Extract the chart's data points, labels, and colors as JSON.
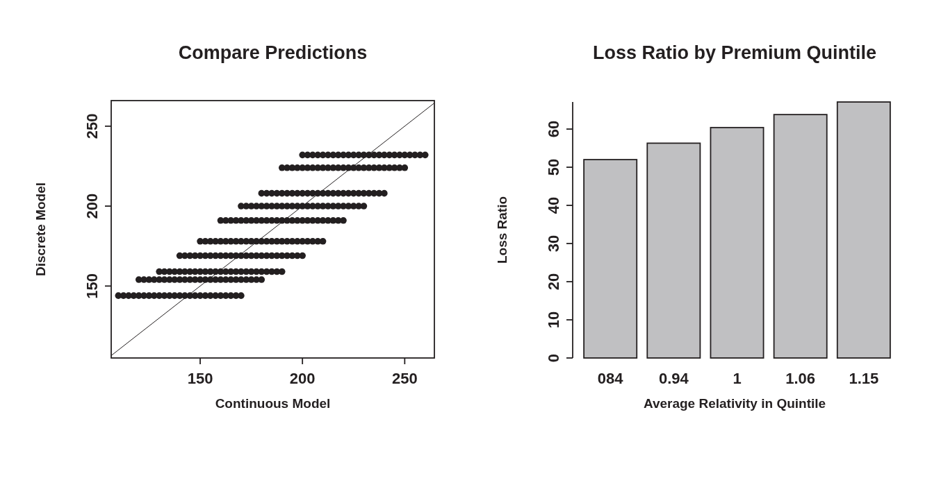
{
  "chart_data": [
    {
      "type": "scatter",
      "title": "Compare Predictions",
      "xlabel": "Continuous Model",
      "ylabel": "Discrete Model",
      "xlim": [
        106.5,
        264.5
      ],
      "ylim": [
        105,
        266
      ],
      "xticks": [
        150,
        200,
        250
      ],
      "yticks": [
        150,
        200,
        250
      ],
      "marker": "circle",
      "series": [
        {
          "color": "#231f20",
          "x": [
            110,
            112.5,
            115,
            117.5,
            120,
            122.5,
            125,
            127.5,
            130,
            132.5,
            135,
            137.5,
            140,
            142.5,
            145,
            147.5,
            150,
            152.5,
            155,
            157.5,
            160,
            162.5,
            165,
            167.5,
            170
          ],
          "values": [
            144,
            144,
            144,
            144,
            144,
            144,
            144,
            144,
            144,
            144,
            144,
            144,
            144,
            144,
            144,
            144,
            144,
            144,
            144,
            144,
            144,
            144,
            144,
            144,
            144
          ]
        },
        {
          "color": "#231f20",
          "x": [
            120,
            122.5,
            125,
            127.5,
            130,
            132.5,
            135,
            137.5,
            140,
            142.5,
            145,
            147.5,
            150,
            152.5,
            155,
            157.5,
            160,
            162.5,
            165,
            167.5,
            170,
            172.5,
            175,
            177.5,
            180
          ],
          "values": [
            154,
            154,
            154,
            154,
            154,
            154,
            154,
            154,
            154,
            154,
            154,
            154,
            154,
            154,
            154,
            154,
            154,
            154,
            154,
            154,
            154,
            154,
            154,
            154,
            154
          ]
        },
        {
          "color": "#231f20",
          "x": [
            130,
            132.5,
            135,
            137.5,
            140,
            142.5,
            145,
            147.5,
            150,
            152.5,
            155,
            157.5,
            160,
            162.5,
            165,
            167.5,
            170,
            172.5,
            175,
            177.5,
            180,
            182.5,
            185,
            187.5,
            190
          ],
          "values": [
            159,
            159,
            159,
            159,
            159,
            159,
            159,
            159,
            159,
            159,
            159,
            159,
            159,
            159,
            159,
            159,
            159,
            159,
            159,
            159,
            159,
            159,
            159,
            159,
            159
          ]
        },
        {
          "color": "#231f20",
          "x": [
            140,
            142.5,
            145,
            147.5,
            150,
            152.5,
            155,
            157.5,
            160,
            162.5,
            165,
            167.5,
            170,
            172.5,
            175,
            177.5,
            180,
            182.5,
            185,
            187.5,
            190,
            192.5,
            195,
            197.5,
            200
          ],
          "values": [
            169,
            169,
            169,
            169,
            169,
            169,
            169,
            169,
            169,
            169,
            169,
            169,
            169,
            169,
            169,
            169,
            169,
            169,
            169,
            169,
            169,
            169,
            169,
            169,
            169
          ]
        },
        {
          "color": "#231f20",
          "x": [
            150,
            152.5,
            155,
            157.5,
            160,
            162.5,
            165,
            167.5,
            170,
            172.5,
            175,
            177.5,
            180,
            182.5,
            185,
            187.5,
            190,
            192.5,
            195,
            197.5,
            200,
            202.5,
            205,
            207.5,
            210
          ],
          "values": [
            178,
            178,
            178,
            178,
            178,
            178,
            178,
            178,
            178,
            178,
            178,
            178,
            178,
            178,
            178,
            178,
            178,
            178,
            178,
            178,
            178,
            178,
            178,
            178,
            178
          ]
        },
        {
          "color": "#231f20",
          "x": [
            160,
            162.5,
            165,
            167.5,
            170,
            172.5,
            175,
            177.5,
            180,
            182.5,
            185,
            187.5,
            190,
            192.5,
            195,
            197.5,
            200,
            202.5,
            205,
            207.5,
            210,
            212.5,
            215,
            217.5,
            220
          ],
          "values": [
            191,
            191,
            191,
            191,
            191,
            191,
            191,
            191,
            191,
            191,
            191,
            191,
            191,
            191,
            191,
            191,
            191,
            191,
            191,
            191,
            191,
            191,
            191,
            191,
            191
          ]
        },
        {
          "color": "#231f20",
          "x": [
            170,
            172.5,
            175,
            177.5,
            180,
            182.5,
            185,
            187.5,
            190,
            192.5,
            195,
            197.5,
            200,
            202.5,
            205,
            207.5,
            210,
            212.5,
            215,
            217.5,
            220,
            222.5,
            225,
            227.5,
            230
          ],
          "values": [
            200,
            200,
            200,
            200,
            200,
            200,
            200,
            200,
            200,
            200,
            200,
            200,
            200,
            200,
            200,
            200,
            200,
            200,
            200,
            200,
            200,
            200,
            200,
            200,
            200
          ]
        },
        {
          "color": "#231f20",
          "x": [
            180,
            182.5,
            185,
            187.5,
            190,
            192.5,
            195,
            197.5,
            200,
            202.5,
            205,
            207.5,
            210,
            212.5,
            215,
            217.5,
            220,
            222.5,
            225,
            227.5,
            230,
            232.5,
            235,
            237.5,
            240
          ],
          "values": [
            208,
            208,
            208,
            208,
            208,
            208,
            208,
            208,
            208,
            208,
            208,
            208,
            208,
            208,
            208,
            208,
            208,
            208,
            208,
            208,
            208,
            208,
            208,
            208,
            208
          ]
        },
        {
          "color": "#231f20",
          "x": [
            190,
            192.5,
            195,
            197.5,
            200,
            202.5,
            205,
            207.5,
            210,
            212.5,
            215,
            217.5,
            220,
            222.5,
            225,
            227.5,
            230,
            232.5,
            235,
            237.5,
            240,
            242.5,
            245,
            247.5,
            250
          ],
          "values": [
            224,
            224,
            224,
            224,
            224,
            224,
            224,
            224,
            224,
            224,
            224,
            224,
            224,
            224,
            224,
            224,
            224,
            224,
            224,
            224,
            224,
            224,
            224,
            224,
            224
          ]
        },
        {
          "color": "#231f20",
          "x": [
            200,
            202.5,
            205,
            207.5,
            210,
            212.5,
            215,
            217.5,
            220,
            222.5,
            225,
            227.5,
            230,
            232.5,
            235,
            237.5,
            240,
            242.5,
            245,
            247.5,
            250,
            252.5,
            255,
            257.5,
            260
          ],
          "values": [
            232,
            232,
            232,
            232,
            232,
            232,
            232,
            232,
            232,
            232,
            232,
            232,
            232,
            232,
            232,
            232,
            232,
            232,
            232,
            232,
            232,
            232,
            232,
            232,
            232
          ]
        },
        {
          "type": "line",
          "marker": "none",
          "line_style": "solid",
          "color": "#231f20",
          "x": [
            106.5,
            264.5
          ],
          "values": [
            106.5,
            264.5
          ]
        }
      ]
    },
    {
      "type": "bar",
      "title": "Loss Ratio by Premium Quintile",
      "xlabel": "Average Relativity in Quintile",
      "ylabel": "Loss Ratio",
      "categories": [
        "084",
        "0.94",
        "1",
        "1.06",
        "1.15"
      ],
      "values": [
        52,
        56.3,
        60.4,
        63.8,
        67.1
      ],
      "color": "#c0c0c2",
      "ylim": [
        0,
        67.1
      ],
      "yticks": [
        0,
        10,
        20,
        30,
        40,
        50,
        60
      ]
    }
  ]
}
